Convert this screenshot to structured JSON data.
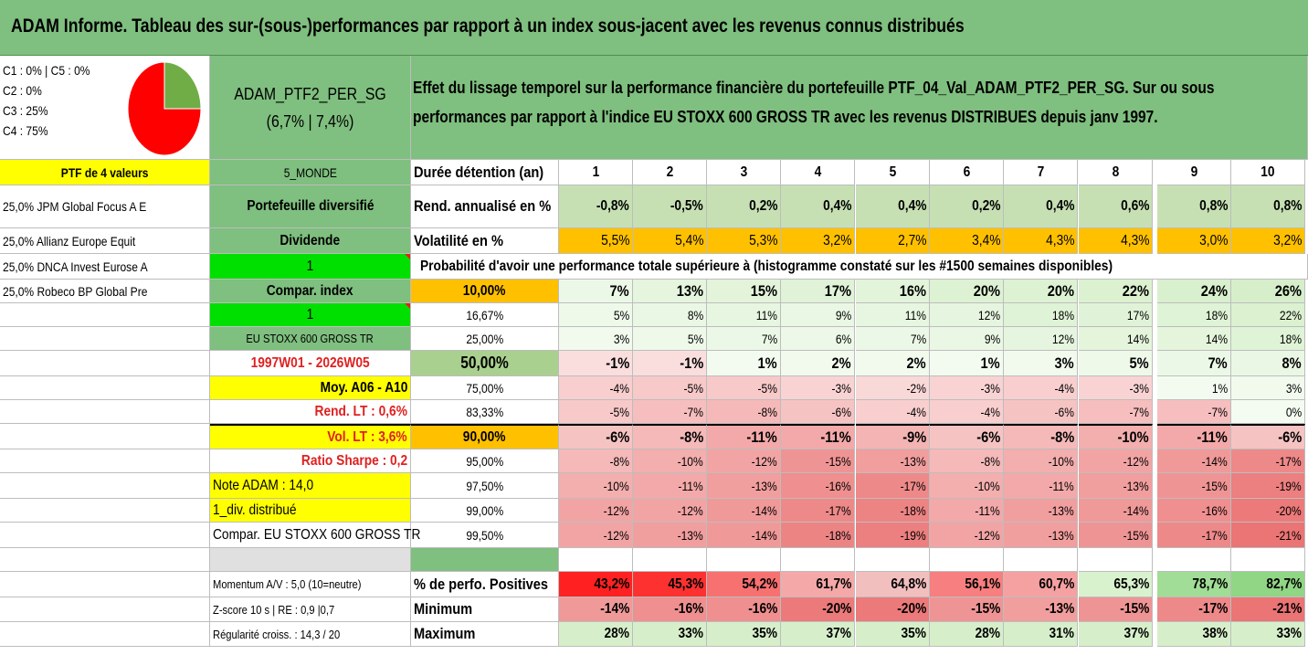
{
  "title": "ADAM Informe. Tableau des sur-(sous-)performances par rapport à un index sous-jacent avec les revenus connus distribués",
  "left_panel": {
    "categories": [
      "C1 : 0% | C5 : 0%",
      "C2 : 0%",
      "C3 : 25%",
      "C4 : 75%"
    ],
    "pie": {
      "slices": [
        {
          "label": "C3",
          "value": 25,
          "color": "#70ad47"
        },
        {
          "label": "C4",
          "value": 75,
          "color": "#ff0000"
        }
      ]
    },
    "ptf_label": "PTF de 4 valeurs",
    "holdings": [
      "25,0% JPM Global Focus A E",
      "25,0% Allianz Europe Equit",
      "25,0% DNCA Invest Eurose A",
      "25,0% Robeco BP Global Pre"
    ]
  },
  "mid_panel": {
    "portfolio_name": "ADAM_PTF2_PER_SG",
    "portfolio_perf": "(6,7% | 7,4%)",
    "zone": "5_MONDE",
    "type": "Portefeuille diversifié",
    "income": "Dividende",
    "value_one": "1",
    "compar_index": "Compar. index",
    "value_two": "1",
    "index_name": "EU STOXX 600 GROSS TR",
    "period": "1997W01 - 2026W05",
    "moy": "Moy. A06 - A10",
    "rend_lt": "Rend. LT : 0,6%",
    "vol_lt": "Vol. LT : 3,6%",
    "sharpe": "Ratio Sharpe : 0,2",
    "note": "Note ADAM : 14,0",
    "div": "1_div. distribué",
    "compar_full": "Compar. EU STOXX 600 GROSS TR",
    "momentum": "Momentum A/V : 5,0 (10=neutre)",
    "zscore": "Z-score 10 s | RE : 0,9 |0,7",
    "regularity": "Régularité croiss. : 14,3 / 20"
  },
  "description": [
    "Effet du lissage temporel sur la performance financière du portefeuille PTF_04_Val_ADAM_PTF2_PER_SG. Sur ou sous",
    "performances par rapport à l'indice EU STOXX 600 GROSS TR avec les revenus DISTRIBUES depuis janv 1997."
  ],
  "table": {
    "duration_label": "Durée détention (an)",
    "years": [
      "1",
      "2",
      "3",
      "4",
      "5",
      "6",
      "7",
      "8",
      "9",
      "10"
    ],
    "rend_label": "Rend. annualisé en %",
    "rend": [
      "-0,8%",
      "-0,5%",
      "0,2%",
      "0,4%",
      "0,4%",
      "0,2%",
      "0,4%",
      "0,6%",
      "0,8%",
      "0,8%"
    ],
    "vol_label": "Volatilité en %",
    "vol": [
      "5,5%",
      "5,4%",
      "5,3%",
      "3,2%",
      "2,7%",
      "3,4%",
      "4,3%",
      "4,3%",
      "3,0%",
      "3,2%"
    ],
    "prob_header": "Probabilité d'avoir une performance totale supérieure à (histogramme constaté sur les #1500 semaines disponibles)",
    "quantile_rows": [
      {
        "q": "10,00%",
        "v": [
          "7%",
          "13%",
          "15%",
          "17%",
          "16%",
          "20%",
          "20%",
          "22%",
          "24%",
          "26%"
        ]
      },
      {
        "q": "16,67%",
        "v": [
          "5%",
          "8%",
          "11%",
          "9%",
          "11%",
          "12%",
          "18%",
          "17%",
          "18%",
          "22%"
        ]
      },
      {
        "q": "25,00%",
        "v": [
          "3%",
          "5%",
          "7%",
          "6%",
          "7%",
          "9%",
          "12%",
          "14%",
          "14%",
          "18%"
        ]
      },
      {
        "q": "50,00%",
        "v": [
          "-1%",
          "-1%",
          "1%",
          "2%",
          "2%",
          "1%",
          "3%",
          "5%",
          "7%",
          "8%"
        ]
      },
      {
        "q": "75,00%",
        "v": [
          "-4%",
          "-5%",
          "-5%",
          "-3%",
          "-2%",
          "-3%",
          "-4%",
          "-3%",
          "1%",
          "3%"
        ]
      },
      {
        "q": "83,33%",
        "v": [
          "-5%",
          "-7%",
          "-8%",
          "-6%",
          "-4%",
          "-4%",
          "-6%",
          "-7%",
          "-7%",
          "0%"
        ]
      },
      {
        "q": "90,00%",
        "v": [
          "-6%",
          "-8%",
          "-11%",
          "-11%",
          "-9%",
          "-6%",
          "-8%",
          "-10%",
          "-11%",
          "-6%"
        ]
      },
      {
        "q": "95,00%",
        "v": [
          "-8%",
          "-10%",
          "-12%",
          "-15%",
          "-13%",
          "-8%",
          "-10%",
          "-12%",
          "-14%",
          "-17%"
        ]
      },
      {
        "q": "97,50%",
        "v": [
          "-10%",
          "-11%",
          "-13%",
          "-16%",
          "-17%",
          "-10%",
          "-11%",
          "-13%",
          "-15%",
          "-19%"
        ]
      },
      {
        "q": "99,00%",
        "v": [
          "-12%",
          "-12%",
          "-14%",
          "-17%",
          "-18%",
          "-11%",
          "-13%",
          "-14%",
          "-16%",
          "-20%"
        ]
      },
      {
        "q": "99,50%",
        "v": [
          "-12%",
          "-13%",
          "-14%",
          "-18%",
          "-19%",
          "-12%",
          "-13%",
          "-15%",
          "-17%",
          "-21%"
        ]
      }
    ],
    "positives_label": "% de perfo. Positives",
    "positives": [
      "43,2%",
      "45,3%",
      "54,2%",
      "61,7%",
      "64,8%",
      "56,1%",
      "60,7%",
      "65,3%",
      "78,7%",
      "82,7%"
    ],
    "min_label": "Minimum",
    "minimum": [
      "-14%",
      "-16%",
      "-16%",
      "-20%",
      "-20%",
      "-15%",
      "-13%",
      "-15%",
      "-17%",
      "-21%"
    ],
    "max_label": "Maximum",
    "maximum": [
      "28%",
      "33%",
      "35%",
      "37%",
      "35%",
      "28%",
      "31%",
      "37%",
      "38%",
      "33%"
    ]
  }
}
